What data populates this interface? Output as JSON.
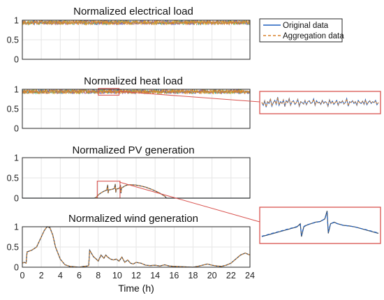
{
  "colors": {
    "original": "#1f5fbf",
    "aggregation": "#d9822b",
    "noise_a": "#2aa05a",
    "noise_b": "#8a4fb0",
    "noise_c": "#e0b020",
    "zoom_box": "#d9534f",
    "axis": "#262626",
    "grid": "#e6e6e6"
  },
  "legend": {
    "original_label": "Original data",
    "aggregation_label": "Aggregation data"
  },
  "chart_data": [
    {
      "type": "line",
      "title": "Normalized electrical load",
      "xlabel": "",
      "ylabel": "",
      "xlim": [
        0,
        24
      ],
      "ylim": [
        0,
        1
      ],
      "yticks": [
        "0",
        "0.5",
        "1"
      ],
      "grid": true,
      "series": [
        {
          "name": "Original data",
          "style": "dense-noise",
          "x": [
            0,
            24
          ],
          "level": 0.94,
          "amplitude": 0.05
        },
        {
          "name": "Aggregation data",
          "style": "dense-noise",
          "x": [
            0,
            24
          ],
          "level": 0.94,
          "amplitude": 0.05
        }
      ]
    },
    {
      "type": "line",
      "title": "Normalized heat load",
      "xlabel": "",
      "ylabel": "",
      "xlim": [
        0,
        24
      ],
      "ylim": [
        0,
        1
      ],
      "yticks": [
        "0",
        "0.5",
        "1"
      ],
      "grid": true,
      "zoom_region": {
        "x": [
          8,
          10.2
        ],
        "y": [
          0.85,
          1.02
        ]
      },
      "series": [
        {
          "name": "Original data",
          "style": "dense-noise",
          "x": [
            0,
            24
          ],
          "level": 0.94,
          "amplitude": 0.05
        },
        {
          "name": "Aggregation data",
          "style": "dense-noise",
          "x": [
            0,
            24
          ],
          "level": 0.94,
          "amplitude": 0.05
        }
      ]
    },
    {
      "type": "line",
      "title": "Normalized PV generation",
      "xlabel": "",
      "ylabel": "",
      "xlim": [
        0,
        24
      ],
      "ylim": [
        0,
        1
      ],
      "yticks": [
        "0",
        "0.5",
        "1"
      ],
      "grid": true,
      "zoom_region": {
        "x": [
          7.9,
          10.3
        ],
        "y": [
          0,
          0.42
        ]
      },
      "series": [
        {
          "name": "Original data",
          "x": [
            0,
            7.6,
            7.8,
            8.0,
            8.3,
            8.6,
            8.9,
            9.0,
            9.05,
            9.1,
            9.3,
            9.5,
            9.7,
            9.8,
            9.85,
            9.9,
            10.0,
            10.2,
            10.35,
            10.4,
            10.45,
            10.6,
            10.8,
            11.0,
            11.3,
            11.6,
            12.0,
            12.5,
            13.0,
            13.5,
            14.0,
            14.5,
            15.0,
            15.2,
            24
          ],
          "y": [
            0,
            0,
            0.02,
            0.08,
            0.13,
            0.17,
            0.2,
            0.33,
            0.12,
            0.2,
            0.21,
            0.22,
            0.24,
            0.35,
            0.14,
            0.22,
            0.23,
            0.24,
            0.3,
            0.12,
            0.25,
            0.27,
            0.3,
            0.32,
            0.33,
            0.33,
            0.32,
            0.3,
            0.27,
            0.23,
            0.18,
            0.12,
            0.05,
            0,
            0
          ]
        },
        {
          "name": "Aggregation data",
          "x": [
            0,
            7.6,
            7.8,
            8.0,
            8.3,
            8.6,
            8.9,
            9.0,
            9.05,
            9.1,
            9.3,
            9.5,
            9.7,
            9.8,
            9.85,
            9.9,
            10.0,
            10.2,
            10.35,
            10.4,
            10.45,
            10.6,
            10.8,
            11.0,
            11.3,
            11.6,
            12.0,
            12.5,
            13.0,
            13.5,
            14.0,
            14.5,
            15.0,
            15.2,
            24
          ],
          "y": [
            0,
            0,
            0.02,
            0.08,
            0.13,
            0.17,
            0.2,
            0.32,
            0.13,
            0.2,
            0.21,
            0.22,
            0.24,
            0.34,
            0.15,
            0.22,
            0.23,
            0.24,
            0.29,
            0.13,
            0.25,
            0.27,
            0.3,
            0.32,
            0.33,
            0.33,
            0.32,
            0.3,
            0.27,
            0.23,
            0.18,
            0.12,
            0.05,
            0,
            0
          ]
        }
      ]
    },
    {
      "type": "line",
      "title": "Normalized wind generation",
      "xlabel": "Time (h)",
      "ylabel": "",
      "xlim": [
        0,
        24
      ],
      "ylim": [
        0,
        1
      ],
      "xticks": [
        "0",
        "2",
        "4",
        "6",
        "8",
        "10",
        "12",
        "14",
        "16",
        "18",
        "20",
        "22",
        "24"
      ],
      "yticks": [
        "0",
        "0.5",
        "1"
      ],
      "grid": true,
      "series": [
        {
          "name": "Original data",
          "x": [
            0,
            0.2,
            0.4,
            0.5,
            1.0,
            1.5,
            2.0,
            2.3,
            2.6,
            2.9,
            3.2,
            3.5,
            4.0,
            4.5,
            5.0,
            5.5,
            6.0,
            6.5,
            6.9,
            7.0,
            7.1,
            7.5,
            7.8,
            8.0,
            8.3,
            8.6,
            8.8,
            9.0,
            9.3,
            9.6,
            9.9,
            10.2,
            10.5,
            10.8,
            11.1,
            11.4,
            11.7,
            12.0,
            12.5,
            13.0,
            13.5,
            14.0,
            14.5,
            15.0,
            15.5,
            16.0,
            17.0,
            18.0,
            18.5,
            19.0,
            19.5,
            20.0,
            20.5,
            21.0,
            21.5,
            22.0,
            22.5,
            23.0,
            23.5,
            24.0
          ],
          "y": [
            0.1,
            0.12,
            0.1,
            0.38,
            0.42,
            0.5,
            0.75,
            0.9,
            1.0,
            0.98,
            0.8,
            0.5,
            0.2,
            0.06,
            0.02,
            0.01,
            0,
            0.02,
            0.03,
            0.05,
            0.42,
            0.26,
            0.2,
            0.15,
            0.3,
            0.22,
            0.3,
            0.25,
            0.2,
            0.18,
            0.2,
            0.15,
            0.25,
            0.12,
            0.18,
            0.1,
            0.08,
            0.12,
            0.1,
            0.05,
            0.04,
            0.05,
            0.03,
            0.06,
            0.03,
            0.02,
            0.01,
            0,
            0.02,
            0.05,
            0.08,
            0.05,
            0.03,
            0.02,
            0.05,
            0.1,
            0.2,
            0.3,
            0.35,
            0.3
          ]
        },
        {
          "name": "Aggregation data",
          "x": [
            0,
            0.2,
            0.4,
            0.5,
            1.0,
            1.5,
            2.0,
            2.3,
            2.6,
            2.9,
            3.2,
            3.5,
            4.0,
            4.5,
            5.0,
            5.5,
            6.0,
            6.5,
            6.9,
            7.0,
            7.1,
            7.5,
            7.8,
            8.0,
            8.3,
            8.6,
            8.8,
            9.0,
            9.3,
            9.6,
            9.9,
            10.2,
            10.5,
            10.8,
            11.1,
            11.4,
            11.7,
            12.0,
            12.5,
            13.0,
            13.5,
            14.0,
            14.5,
            15.0,
            15.5,
            16.0,
            17.0,
            18.0,
            18.5,
            19.0,
            19.5,
            20.0,
            20.5,
            21.0,
            21.5,
            22.0,
            22.5,
            23.0,
            23.5,
            24.0
          ],
          "y": [
            0.1,
            0.12,
            0.1,
            0.37,
            0.42,
            0.5,
            0.75,
            0.9,
            1.0,
            0.98,
            0.8,
            0.5,
            0.2,
            0.06,
            0.02,
            0.01,
            0,
            0.02,
            0.03,
            0.05,
            0.41,
            0.26,
            0.2,
            0.15,
            0.29,
            0.22,
            0.3,
            0.25,
            0.2,
            0.18,
            0.2,
            0.15,
            0.25,
            0.12,
            0.18,
            0.1,
            0.08,
            0.12,
            0.1,
            0.05,
            0.04,
            0.05,
            0.03,
            0.06,
            0.03,
            0.02,
            0.01,
            0,
            0.02,
            0.05,
            0.08,
            0.05,
            0.03,
            0.02,
            0.05,
            0.1,
            0.2,
            0.3,
            0.35,
            0.3
          ]
        }
      ]
    }
  ],
  "inset_heat": {
    "series": [
      {
        "name": "Original data",
        "y": [
          0.5,
          0.35,
          0.6,
          0.25,
          0.55,
          0.45,
          0.7,
          0.3,
          0.5,
          0.62,
          0.4,
          0.8,
          0.35,
          0.55,
          0.45,
          0.65,
          0.28,
          0.6,
          0.5,
          0.72,
          0.35,
          0.55,
          0.6,
          0.4,
          0.5,
          0.68,
          0.3,
          0.55,
          0.5,
          0.42,
          0.62,
          0.38,
          0.55,
          0.6,
          0.45,
          0.5,
          0.7,
          0.35,
          0.6,
          0.48,
          0.52,
          0.4,
          0.62,
          0.45,
          0.55,
          0.5,
          0.3,
          0.65,
          0.45,
          0.58,
          0.4,
          0.5,
          0.62,
          0.35,
          0.55,
          0.48,
          0.6,
          0.42,
          0.5,
          0.72,
          0.3,
          0.55,
          0.5,
          0.6,
          0.45,
          0.55,
          0.35,
          0.62,
          0.5,
          0.45,
          0.58,
          0.4,
          0.66,
          0.38,
          0.52,
          0.6,
          0.45,
          0.55,
          0.5,
          0.62,
          0.38,
          0.5
        ]
      },
      {
        "name": "Aggregation data",
        "y": [
          0.52,
          0.36,
          0.58,
          0.27,
          0.54,
          0.46,
          0.68,
          0.32,
          0.5,
          0.6,
          0.42,
          0.78,
          0.37,
          0.54,
          0.46,
          0.64,
          0.3,
          0.6,
          0.5,
          0.7,
          0.37,
          0.55,
          0.58,
          0.42,
          0.5,
          0.66,
          0.32,
          0.54,
          0.5,
          0.44,
          0.6,
          0.4,
          0.55,
          0.58,
          0.46,
          0.5,
          0.68,
          0.37,
          0.58,
          0.48,
          0.52,
          0.42,
          0.6,
          0.46,
          0.54,
          0.5,
          0.32,
          0.63,
          0.46,
          0.57,
          0.42,
          0.5,
          0.6,
          0.37,
          0.54,
          0.48,
          0.58,
          0.43,
          0.5,
          0.7,
          0.32,
          0.54,
          0.5,
          0.58,
          0.46,
          0.54,
          0.37,
          0.6,
          0.5,
          0.46,
          0.57,
          0.42,
          0.64,
          0.4,
          0.52,
          0.58,
          0.46,
          0.54,
          0.5,
          0.6,
          0.4,
          0.5
        ]
      }
    ]
  },
  "inset_pv": {
    "series": [
      {
        "name": "Original data",
        "x": [
          0,
          0.05,
          0.1,
          0.15,
          0.2,
          0.25,
          0.3,
          0.33,
          0.34,
          0.36,
          0.38,
          0.42,
          0.46,
          0.5,
          0.54,
          0.56,
          0.57,
          0.59,
          0.62,
          0.65,
          0.7,
          0.75,
          0.8,
          0.85,
          0.9,
          0.95,
          1.0
        ],
        "y": [
          0.15,
          0.2,
          0.25,
          0.3,
          0.35,
          0.4,
          0.45,
          0.55,
          0.15,
          0.45,
          0.5,
          0.55,
          0.6,
          0.62,
          0.7,
          0.95,
          0.25,
          0.55,
          0.6,
          0.55,
          0.5,
          0.48,
          0.45,
          0.4,
          0.35,
          0.3,
          0.25
        ]
      },
      {
        "name": "Aggregation data",
        "x": [
          0,
          0.05,
          0.1,
          0.15,
          0.2,
          0.25,
          0.3,
          0.33,
          0.34,
          0.36,
          0.38,
          0.42,
          0.46,
          0.5,
          0.54,
          0.56,
          0.57,
          0.59,
          0.62,
          0.65,
          0.7,
          0.75,
          0.8,
          0.85,
          0.9,
          0.95,
          1.0
        ],
        "y": [
          0.16,
          0.21,
          0.26,
          0.31,
          0.36,
          0.41,
          0.46,
          0.52,
          0.2,
          0.46,
          0.51,
          0.55,
          0.59,
          0.62,
          0.7,
          0.9,
          0.3,
          0.55,
          0.59,
          0.55,
          0.5,
          0.48,
          0.45,
          0.4,
          0.36,
          0.31,
          0.26
        ]
      }
    ]
  }
}
